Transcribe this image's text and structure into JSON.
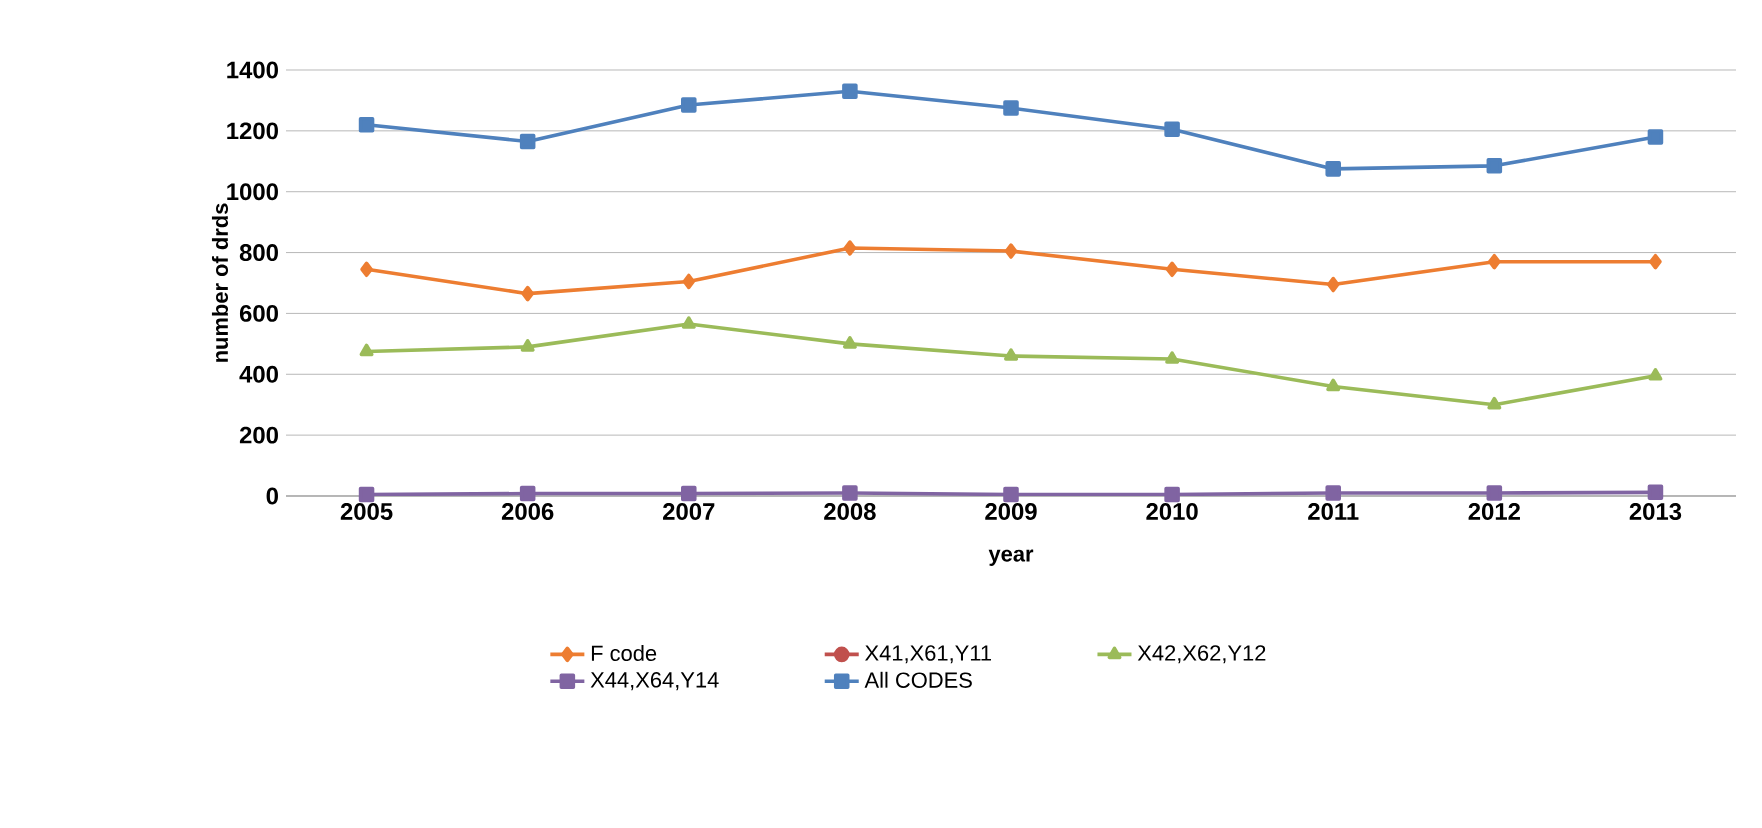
{
  "chart_data": {
    "type": "line",
    "xlabel": "year",
    "ylabel": "number of drds",
    "categories": [
      "2005",
      "2006",
      "2007",
      "2008",
      "2009",
      "2010",
      "2011",
      "2012",
      "2013"
    ],
    "series": [
      {
        "name": "F code",
        "color": "#ed7d31",
        "marker": "diamond",
        "values": [
          745,
          665,
          705,
          815,
          805,
          745,
          695,
          770,
          770
        ]
      },
      {
        "name": "X41,X61,Y11",
        "color": "#c0504d",
        "marker": "circle",
        "values": [
          null,
          null,
          null,
          null,
          null,
          null,
          null,
          null,
          null
        ]
      },
      {
        "name": "X42,X62,Y12",
        "color": "#9bbb59",
        "marker": "triangle",
        "values": [
          475,
          490,
          565,
          500,
          460,
          450,
          360,
          300,
          395
        ]
      },
      {
        "name": "X44,X64,Y14",
        "color": "#8064a2",
        "marker": "square",
        "values": [
          5,
          8,
          8,
          10,
          5,
          5,
          10,
          10,
          12
        ]
      },
      {
        "name": "All CODES",
        "color": "#4f81bd",
        "marker": "square",
        "values": [
          1220,
          1165,
          1285,
          1330,
          1275,
          1205,
          1075,
          1085,
          1180
        ]
      }
    ],
    "ylim": [
      0,
      1400
    ],
    "yticks": [
      0,
      200,
      400,
      600,
      800,
      1000,
      1200,
      1400
    ],
    "grid": "y",
    "legend": "bottom",
    "line_style": "solid"
  }
}
